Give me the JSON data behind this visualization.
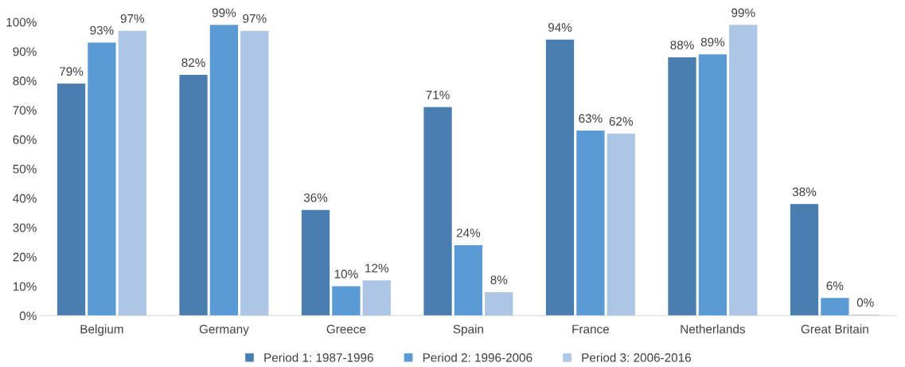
{
  "chart_data": {
    "type": "bar",
    "categories": [
      "Belgium",
      "Germany",
      "Greece",
      "Spain",
      "France",
      "Netherlands",
      "Great Britain"
    ],
    "series": [
      {
        "name": "Period 1: 1987-1996",
        "color": "#4a7eb0",
        "values": [
          79,
          82,
          36,
          71,
          94,
          88,
          38
        ],
        "value_labels": [
          "79%",
          "82%",
          "36%",
          "71%",
          "94%",
          "88%",
          "38%"
        ]
      },
      {
        "name": "Period 2: 1996-2006",
        "color": "#5b9bd5",
        "values": [
          93,
          99,
          10,
          24,
          63,
          89,
          6
        ],
        "value_labels": [
          "93%",
          "99%",
          "10%",
          "24%",
          "63%",
          "89%",
          "6%"
        ]
      },
      {
        "name": "Period 3: 2006-2016",
        "color": "#adc6e5",
        "values": [
          97,
          97,
          12,
          8,
          62,
          99,
          0.3
        ],
        "value_labels": [
          "97%",
          "97%",
          "12%",
          "8%",
          "62%",
          "99%",
          "0%"
        ]
      }
    ],
    "ylim": [
      0,
      100
    ],
    "yticks": [
      {
        "value": 0,
        "label": "0%"
      },
      {
        "value": 10,
        "label": "10%"
      },
      {
        "value": 20,
        "label": "20%"
      },
      {
        "value": 30,
        "label": "30%"
      },
      {
        "value": 40,
        "label": "40%"
      },
      {
        "value": 50,
        "label": "50%"
      },
      {
        "value": 60,
        "label": "60%"
      },
      {
        "value": 70,
        "label": "70%"
      },
      {
        "value": 80,
        "label": "80%"
      },
      {
        "value": 90,
        "label": "90%"
      },
      {
        "value": 100,
        "label": "100%"
      }
    ],
    "grid": false,
    "legend": "bottom"
  }
}
